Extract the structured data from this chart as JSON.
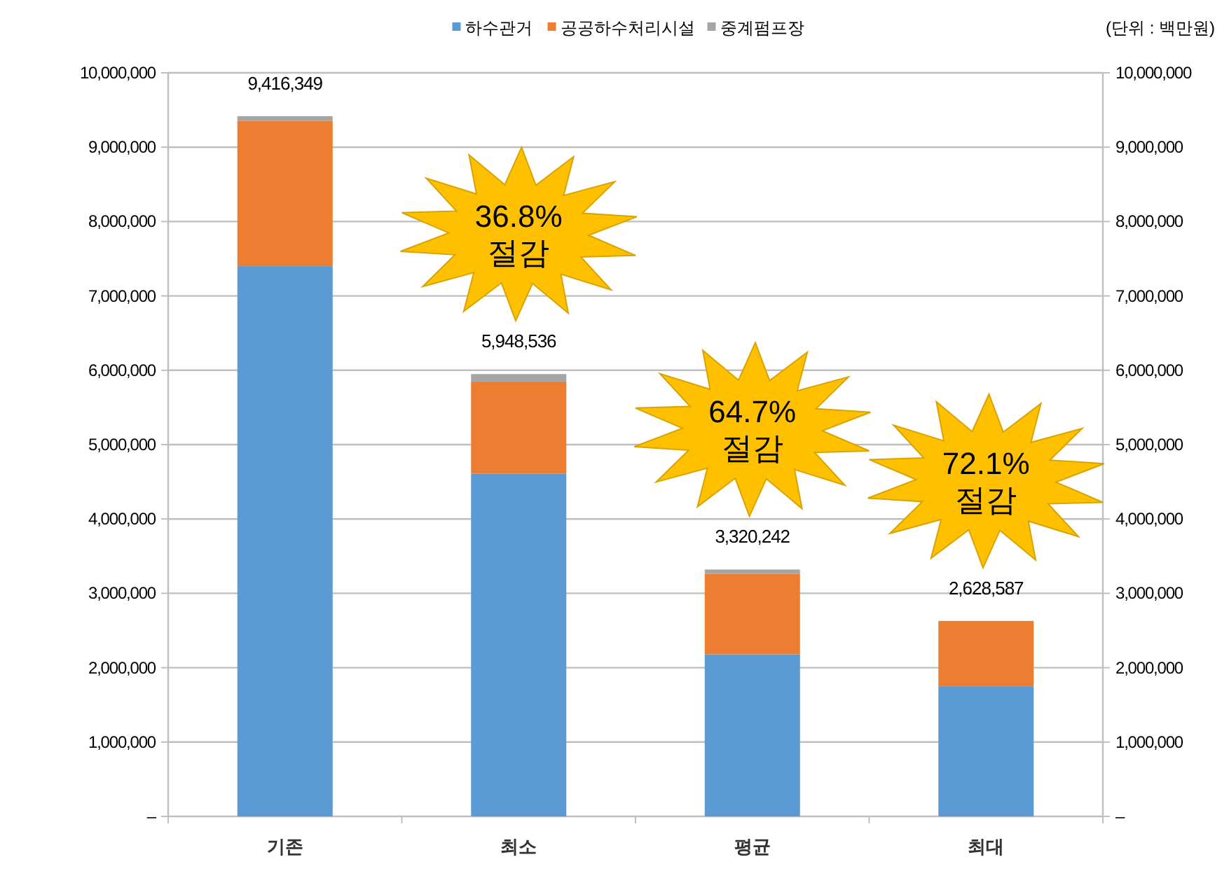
{
  "chart_data": {
    "type": "bar",
    "stacked": true,
    "categories": [
      "기존",
      "최소",
      "평균",
      "최대"
    ],
    "series": [
      {
        "name": "하수관거",
        "color": "#5b9bd5",
        "values": [
          7400000,
          4610000,
          2180000,
          1750000
        ]
      },
      {
        "name": "공공하수처리시설",
        "color": "#ed7d31",
        "values": [
          1956349,
          1238536,
          1080242,
          878587
        ]
      },
      {
        "name": "중계펌프장",
        "color": "#a5a5a5",
        "values": [
          60000,
          100000,
          60000,
          null
        ]
      }
    ],
    "totals": [
      "9,416,349",
      "5,948,536",
      "3,320,242",
      "2,628,587"
    ],
    "ylim": [
      0,
      10000000
    ],
    "yticks": [
      {
        "value": 0,
        "label": "–"
      },
      {
        "value": 1000000,
        "label": "1,000,000"
      },
      {
        "value": 2000000,
        "label": "2,000,000"
      },
      {
        "value": 3000000,
        "label": "3,000,000"
      },
      {
        "value": 4000000,
        "label": "4,000,000"
      },
      {
        "value": 5000000,
        "label": "5,000,000"
      },
      {
        "value": 6000000,
        "label": "6,000,000"
      },
      {
        "value": 7000000,
        "label": "7,000,000"
      },
      {
        "value": 8000000,
        "label": "8,000,000"
      },
      {
        "value": 9000000,
        "label": "9,000,000"
      },
      {
        "value": 10000000,
        "label": "10,000,000"
      }
    ],
    "y2lim": [
      0,
      10000000
    ],
    "y2ticks": [
      {
        "value": 0,
        "label": "–"
      },
      {
        "value": 1000000,
        "label": "1,000,000"
      },
      {
        "value": 2000000,
        "label": "2,000,000"
      },
      {
        "value": 3000000,
        "label": "3,000,000"
      },
      {
        "value": 4000000,
        "label": "4,000,000"
      },
      {
        "value": 5000000,
        "label": "5,000,000"
      },
      {
        "value": 6000000,
        "label": "6,000,000"
      },
      {
        "value": 7000000,
        "label": "7,000,000"
      },
      {
        "value": 8000000,
        "label": "8,000,000"
      },
      {
        "value": 9000000,
        "label": "9,000,000"
      },
      {
        "value": 10000000,
        "label": "10,000,000"
      }
    ],
    "grid": "y",
    "legend": "top",
    "annotations": [
      "(단위 : 백만원)",
      "36.8%\n절감",
      "64.7%\n절감",
      "72.1%\n절감"
    ]
  }
}
